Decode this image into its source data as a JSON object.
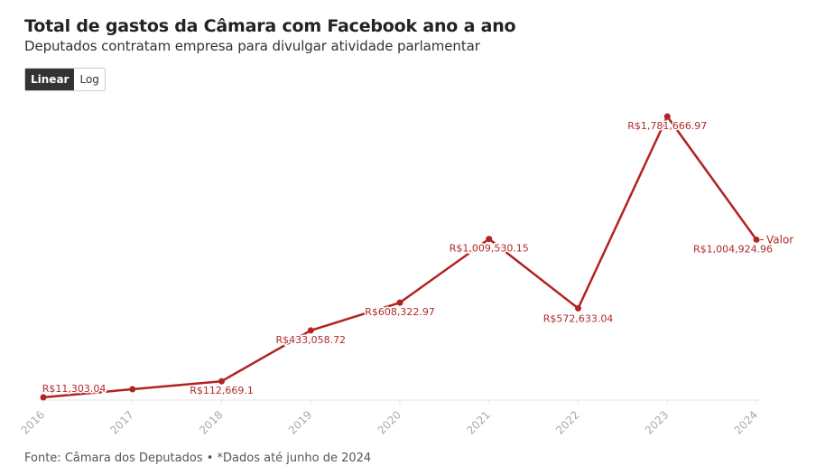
{
  "header": {
    "title": "Total de gastos da Câmara com Facebook ano a ano",
    "subtitle": "Deputados contratam empresa para divulgar atividade parlamentar"
  },
  "scale_toggle": {
    "options": [
      "Linear",
      "Log"
    ],
    "selected": "Linear"
  },
  "footer": {
    "source": "Fonte: Câmara dos Deputados • *Dados até junho de 2024"
  },
  "colors": {
    "line": "#b22222",
    "label": "#b02a2a",
    "axis": "#e6e6e6",
    "tick_text": "#aaaaaa"
  },
  "chart_data": {
    "type": "line",
    "title": "Total de gastos da Câmara com Facebook ano a ano",
    "subtitle": "Deputados contratam empresa para divulgar atividade parlamentar",
    "xlabel": "",
    "ylabel": "",
    "x": [
      "2016",
      "2017",
      "2018",
      "2019",
      "2020",
      "2021",
      "2022",
      "2023",
      "2024"
    ],
    "series": [
      {
        "name": "Valor",
        "values": [
          11303.04,
          62600,
          112669.1,
          433058.72,
          608322.97,
          1009530.15,
          572633.04,
          1781666.97,
          1004924.96
        ],
        "labels": [
          "R$11,303.04",
          "",
          "R$112,669.1",
          "R$433,058.72",
          "R$608,322.97",
          "R$1,009,530.15",
          "R$572,633.04",
          "R$1,781,666.97",
          "R$1,004,924.96"
        ]
      }
    ],
    "ylim": [
      0,
      1781666.97
    ],
    "grid": false,
    "legend": "right-end-of-line",
    "notes": "2017 value not labeled; estimated from position"
  }
}
